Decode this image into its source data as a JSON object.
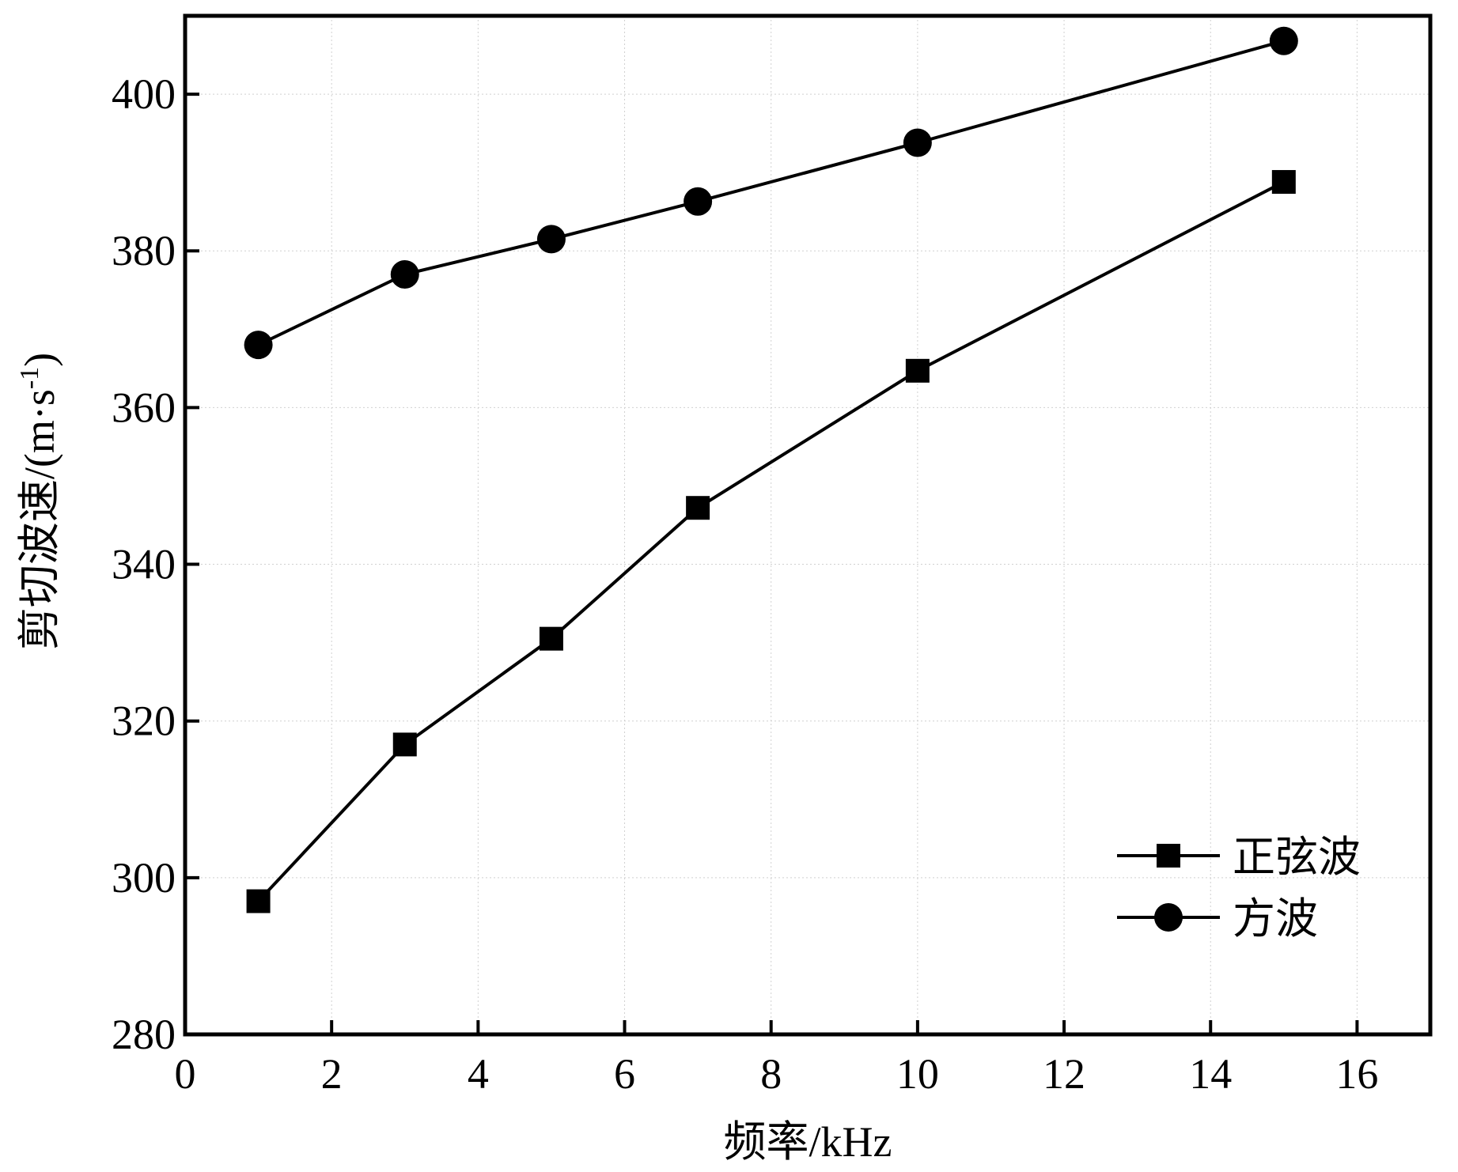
{
  "chart_data": {
    "type": "line",
    "title": "",
    "xlabel": "频率/kHz",
    "ylabel": "剪切波速/(m·s",
    "ylabel_superscript": "-1",
    "ylabel_close": ")",
    "xlim": [
      0,
      17
    ],
    "ylim": [
      280,
      410
    ],
    "xticks": [
      0,
      2,
      4,
      6,
      8,
      10,
      12,
      14,
      16
    ],
    "yticks": [
      280,
      300,
      320,
      340,
      360,
      380,
      400
    ],
    "grid": true,
    "legend_position": "bottom-right",
    "series": [
      {
        "name": "正弦波",
        "marker": "square",
        "color": "#000000",
        "x": [
          1,
          3,
          5,
          7,
          10,
          15
        ],
        "y": [
          297,
          317,
          330.5,
          347.2,
          364.7,
          388.8
        ]
      },
      {
        "name": "方波",
        "marker": "circle",
        "color": "#000000",
        "x": [
          1,
          3,
          5,
          7,
          10,
          15
        ],
        "y": [
          368,
          377,
          381.5,
          386.3,
          393.8,
          406.8
        ]
      }
    ]
  }
}
